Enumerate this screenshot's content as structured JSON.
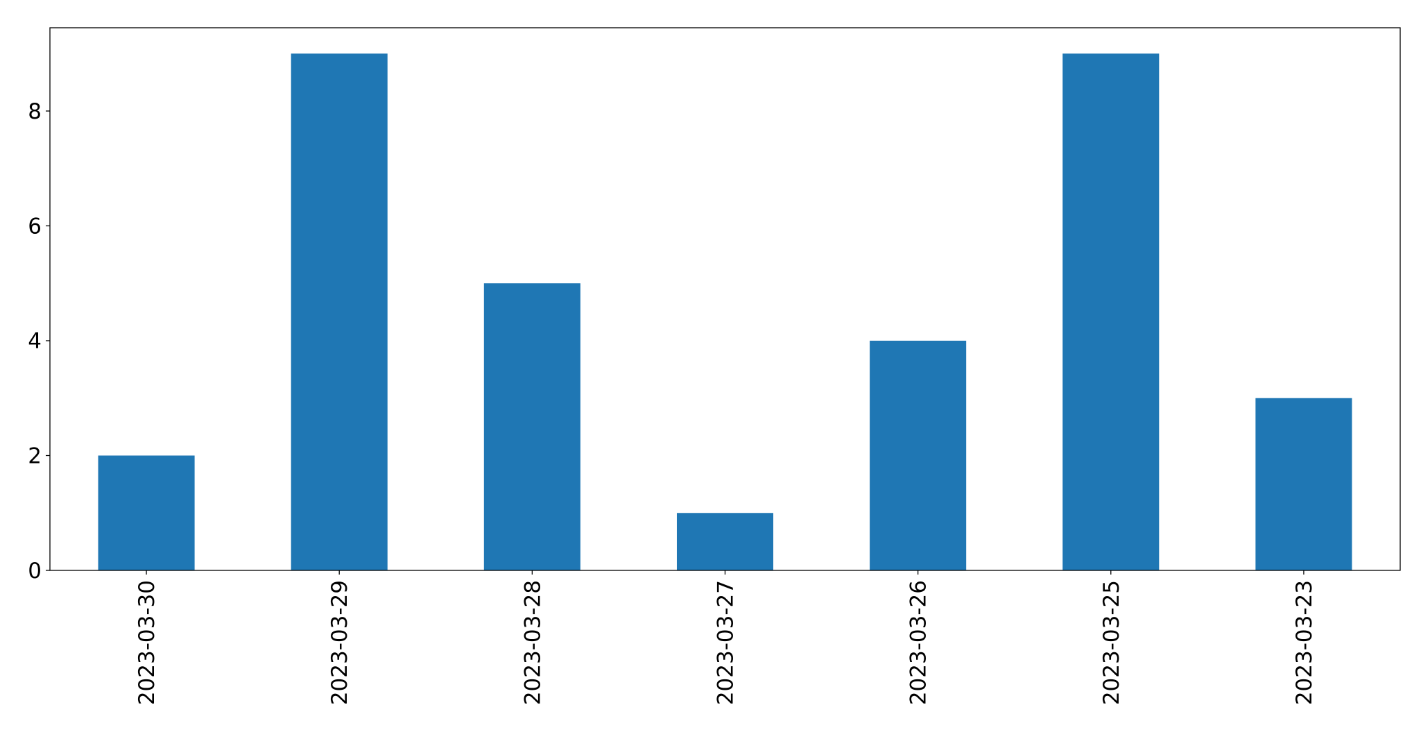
{
  "chart_data": {
    "type": "bar",
    "categories": [
      "2023-03-30",
      "2023-03-29",
      "2023-03-28",
      "2023-03-27",
      "2023-03-26",
      "2023-03-25",
      "2023-03-23"
    ],
    "values": [
      2,
      9,
      5,
      1,
      4,
      9,
      3
    ],
    "title": "",
    "xlabel": "",
    "ylabel": "",
    "ylim": [
      0,
      9.45
    ],
    "yticks": [
      0,
      2,
      4,
      6,
      8
    ],
    "grid": false,
    "bar_color": "#1f77b4",
    "xtick_rotation": 90
  }
}
